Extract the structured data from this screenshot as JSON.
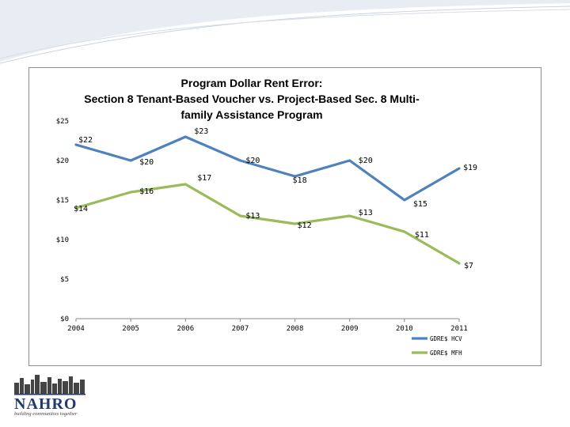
{
  "chart_data": {
    "type": "line",
    "title_lines": [
      "Program Dollar Rent Error:",
      "Section 8 Tenant-Based Voucher vs. Project-Based Sec. 8 Multi-",
      "family Assistance Program"
    ],
    "x": [
      "2004",
      "2005",
      "2006",
      "2007",
      "2008",
      "2009",
      "2010",
      "2011"
    ],
    "ylim": [
      0,
      25
    ],
    "y_ticks": [
      0,
      5,
      10,
      15,
      20,
      25
    ],
    "y_tick_labels": [
      "$0",
      "$5",
      "$10",
      "$15",
      "$20",
      "$25"
    ],
    "legend_position": "bottom-right",
    "series": [
      {
        "name": "GDRE$ HCV",
        "color": "#4f81bd",
        "values": [
          22,
          20,
          23,
          20,
          18,
          20,
          15,
          19
        ],
        "labels": [
          "$22",
          "$20",
          "$23",
          "$20",
          "$18",
          "$20",
          "$15",
          "$19"
        ]
      },
      {
        "name": "GDRE$ MFH",
        "color": "#9bbb59",
        "values": [
          14,
          16,
          17,
          13,
          12,
          13,
          11,
          7
        ],
        "labels": [
          "$14",
          "$16",
          "$17",
          "$13",
          "$12",
          "$13",
          "$11",
          "$7"
        ]
      }
    ]
  },
  "logo": {
    "name": "NAHRO",
    "tagline": "building communities together"
  }
}
